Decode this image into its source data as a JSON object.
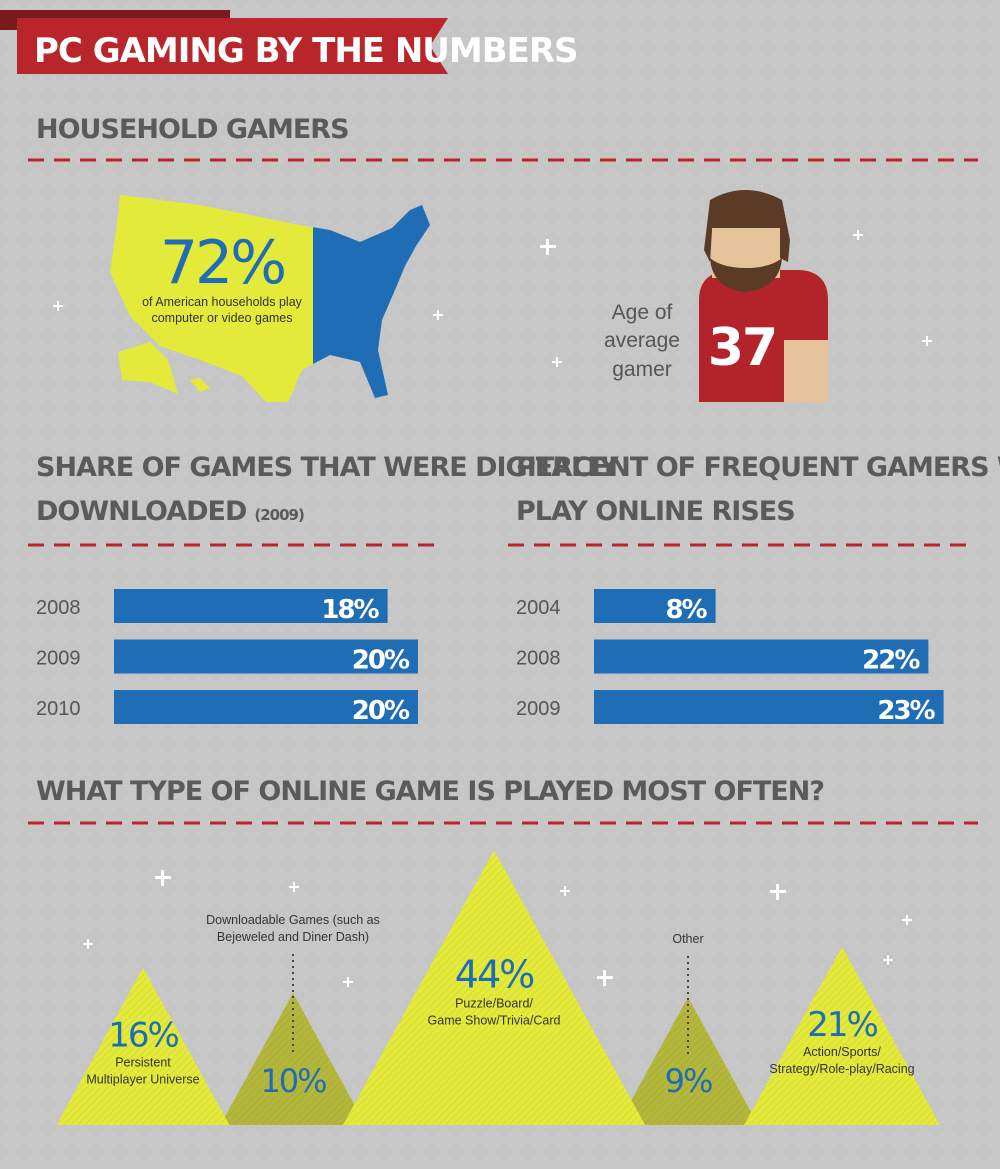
{
  "header": {
    "title": "PC GAMING BY THE NUMBERS"
  },
  "household": {
    "title": "HOUSEHOLD GAMERS",
    "map_stat": "72%",
    "map_caption": [
      "of American households play",
      "computer or video games"
    ],
    "age_stat": "37",
    "age_label": [
      "Age of",
      "average",
      "gamer"
    ]
  },
  "chart_data": [
    {
      "type": "hbar",
      "title": [
        "SHARE OF GAMES THAT WERE DIGITALLY",
        "DOWNLOADED"
      ],
      "subtitle": "(2009)",
      "categories": [
        "2008",
        "2009",
        "2010"
      ],
      "values": [
        18,
        20,
        20
      ],
      "value_labels": [
        "18%",
        "20%",
        "20%"
      ],
      "color": "#1f6db5"
    },
    {
      "type": "hbar",
      "title": [
        "PERCENT OF FREQUENT GAMERS WHO PAY TO",
        "PLAY ONLINE RISES"
      ],
      "categories": [
        "2004",
        "2008",
        "2009"
      ],
      "values": [
        8,
        22,
        23
      ],
      "value_labels": [
        "8%",
        "22%",
        "23%"
      ],
      "color": "#1f6db5"
    },
    {
      "type": "mountain",
      "title": "WHAT TYPE OF ONLINE GAME IS PLAYED MOST OFTEN?",
      "categories": [
        [
          "Persistent",
          "Multiplayer Universe"
        ],
        [
          "Downloadable Games (such as",
          "Bejeweled and Diner Dash)"
        ],
        [
          "Puzzle/Board/",
          "Game Show/Trivia/Card"
        ],
        [
          "Other"
        ],
        [
          "Action/Sports/",
          "Strategy/Role-play/Racing"
        ]
      ],
      "values": [
        16,
        10,
        44,
        9,
        21
      ],
      "value_labels": [
        "16%",
        "10%",
        "44%",
        "9%",
        "21%"
      ],
      "colors": [
        "#e3ea3a",
        "#b3b83c",
        "#e3ea3a",
        "#b3b83c",
        "#e3ea3a"
      ]
    }
  ]
}
